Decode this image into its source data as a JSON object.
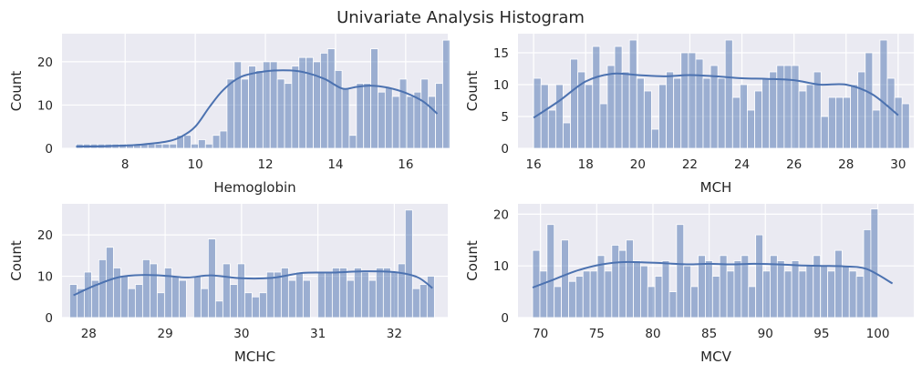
{
  "figure_title": "Univariate Analysis Histogram",
  "style": {
    "panel_bg": "#eaeaf2",
    "grid": "#ffffff",
    "bar_fill": "#4c72b0",
    "bar_alpha": 0.5,
    "kde": "#4c72b0"
  },
  "chart_data": [
    {
      "type": "bar",
      "title": "",
      "xlabel": "Hemoglobin",
      "ylabel": "Count",
      "xlim": [
        6.2,
        17.2
      ],
      "ylim": [
        0,
        26.5
      ],
      "xticks": [
        8,
        10,
        12,
        14,
        16
      ],
      "yticks": [
        0,
        10,
        20
      ],
      "bin_start": 6.6,
      "bin_width": 0.205,
      "values": [
        1,
        1,
        1,
        1,
        1,
        1,
        1,
        1,
        1,
        1,
        1,
        1,
        1,
        1,
        3,
        3,
        1,
        2,
        1,
        3,
        4,
        16,
        20,
        16,
        19,
        18,
        20,
        20,
        16,
        15,
        19,
        21,
        21,
        20,
        22,
        23,
        18,
        14,
        3,
        15,
        15,
        23,
        13,
        14,
        12,
        16,
        12,
        13,
        16,
        12,
        15,
        25
      ],
      "kde_x": [
        6.6,
        7.5,
        8.5,
        9.2,
        9.6,
        10.0,
        10.4,
        10.8,
        11.3,
        12.0,
        12.7,
        13.2,
        13.7,
        14.2,
        14.6,
        15.0,
        15.5,
        16.0,
        16.5,
        16.9
      ],
      "kde_y": [
        0.4,
        0.5,
        0.9,
        1.6,
        2.7,
        5.0,
        9.5,
        13.5,
        16.5,
        17.8,
        18.0,
        17.4,
        16.0,
        13.8,
        14.2,
        14.5,
        14.0,
        12.8,
        10.8,
        8.0
      ]
    },
    {
      "type": "bar",
      "title": "",
      "xlabel": "MCH",
      "ylabel": "Count",
      "xlim": [
        15.4,
        30.6
      ],
      "ylim": [
        0,
        18
      ],
      "xticks": [
        16,
        18,
        20,
        22,
        24,
        26,
        28,
        30
      ],
      "yticks": [
        0,
        5,
        10,
        15
      ],
      "bin_start": 16.0,
      "bin_width": 0.283,
      "values": [
        11,
        10,
        6,
        10,
        4,
        14,
        12,
        10,
        16,
        7,
        13,
        16,
        12,
        17,
        11,
        9,
        3,
        10,
        12,
        11,
        15,
        15,
        14,
        11,
        13,
        11,
        17,
        8,
        10,
        6,
        9,
        11,
        12,
        13,
        13,
        13,
        9,
        10,
        12,
        5,
        8,
        8,
        8,
        10,
        12,
        15,
        6,
        17,
        11,
        8,
        7
      ],
      "kde_x": [
        16.0,
        17.0,
        18.0,
        19.0,
        20.0,
        21.0,
        22.0,
        23.0,
        24.0,
        25.0,
        26.0,
        27.0,
        28.0,
        29.0,
        30.0
      ],
      "kde_y": [
        4.8,
        7.5,
        10.5,
        11.7,
        11.5,
        11.3,
        11.5,
        11.3,
        11.0,
        10.9,
        10.7,
        10.0,
        10.0,
        8.5,
        5.2
      ]
    },
    {
      "type": "bar",
      "title": "",
      "xlabel": "MCHC",
      "ylabel": "Count",
      "xlim": [
        27.65,
        32.7
      ],
      "ylim": [
        0,
        27.5
      ],
      "xticks": [
        28,
        29,
        30,
        31,
        32
      ],
      "yticks": [
        0,
        10,
        20
      ],
      "bin_start": 27.75,
      "bin_width": 0.0955,
      "values": [
        8,
        7,
        11,
        9,
        14,
        17,
        12,
        10,
        7,
        8,
        14,
        13,
        6,
        12,
        10,
        9,
        0,
        10,
        7,
        19,
        4,
        13,
        8,
        13,
        6,
        5,
        6,
        11,
        11,
        12,
        9,
        11,
        9,
        0,
        11,
        11,
        12,
        12,
        9,
        12,
        11,
        9,
        12,
        12,
        11,
        13,
        26,
        7,
        8,
        10
      ],
      "kde_x": [
        27.8,
        28.1,
        28.4,
        28.7,
        29.0,
        29.3,
        29.6,
        30.0,
        30.4,
        30.8,
        31.2,
        31.6,
        32.0,
        32.3,
        32.5
      ],
      "kde_y": [
        5.4,
        7.9,
        9.8,
        10.3,
        10.1,
        9.7,
        10.2,
        9.5,
        9.6,
        10.8,
        10.9,
        11.2,
        11.0,
        9.8,
        7.1
      ]
    },
    {
      "type": "bar",
      "title": "",
      "xlabel": "MCV",
      "ylabel": "Count",
      "xlim": [
        68.0,
        103.2
      ],
      "ylim": [
        0,
        22
      ],
      "xticks": [
        70,
        75,
        80,
        85,
        90,
        95,
        100
      ],
      "yticks": [
        0,
        10,
        20
      ],
      "bin_start": 69.3,
      "bin_width": 0.64,
      "values": [
        13,
        9,
        18,
        6,
        15,
        7,
        8,
        9,
        9,
        12,
        9,
        14,
        13,
        15,
        11,
        10,
        6,
        8,
        11,
        5,
        18,
        10,
        6,
        12,
        11,
        8,
        12,
        9,
        11,
        12,
        6,
        16,
        9,
        12,
        11,
        9,
        11,
        9,
        10,
        12,
        10,
        9,
        13,
        10,
        9,
        8,
        17,
        21
      ],
      "kde_x": [
        69.3,
        71.0,
        73.0,
        75.0,
        77.0,
        79.0,
        81.0,
        83.0,
        85.0,
        87.0,
        89.0,
        91.0,
        93.0,
        95.0,
        97.0,
        99.0,
        101.3
      ],
      "kde_y": [
        5.8,
        7.2,
        8.9,
        10.1,
        10.7,
        10.7,
        10.5,
        10.3,
        10.4,
        10.3,
        10.4,
        10.3,
        10.1,
        10.0,
        9.9,
        9.4,
        6.6
      ]
    }
  ]
}
